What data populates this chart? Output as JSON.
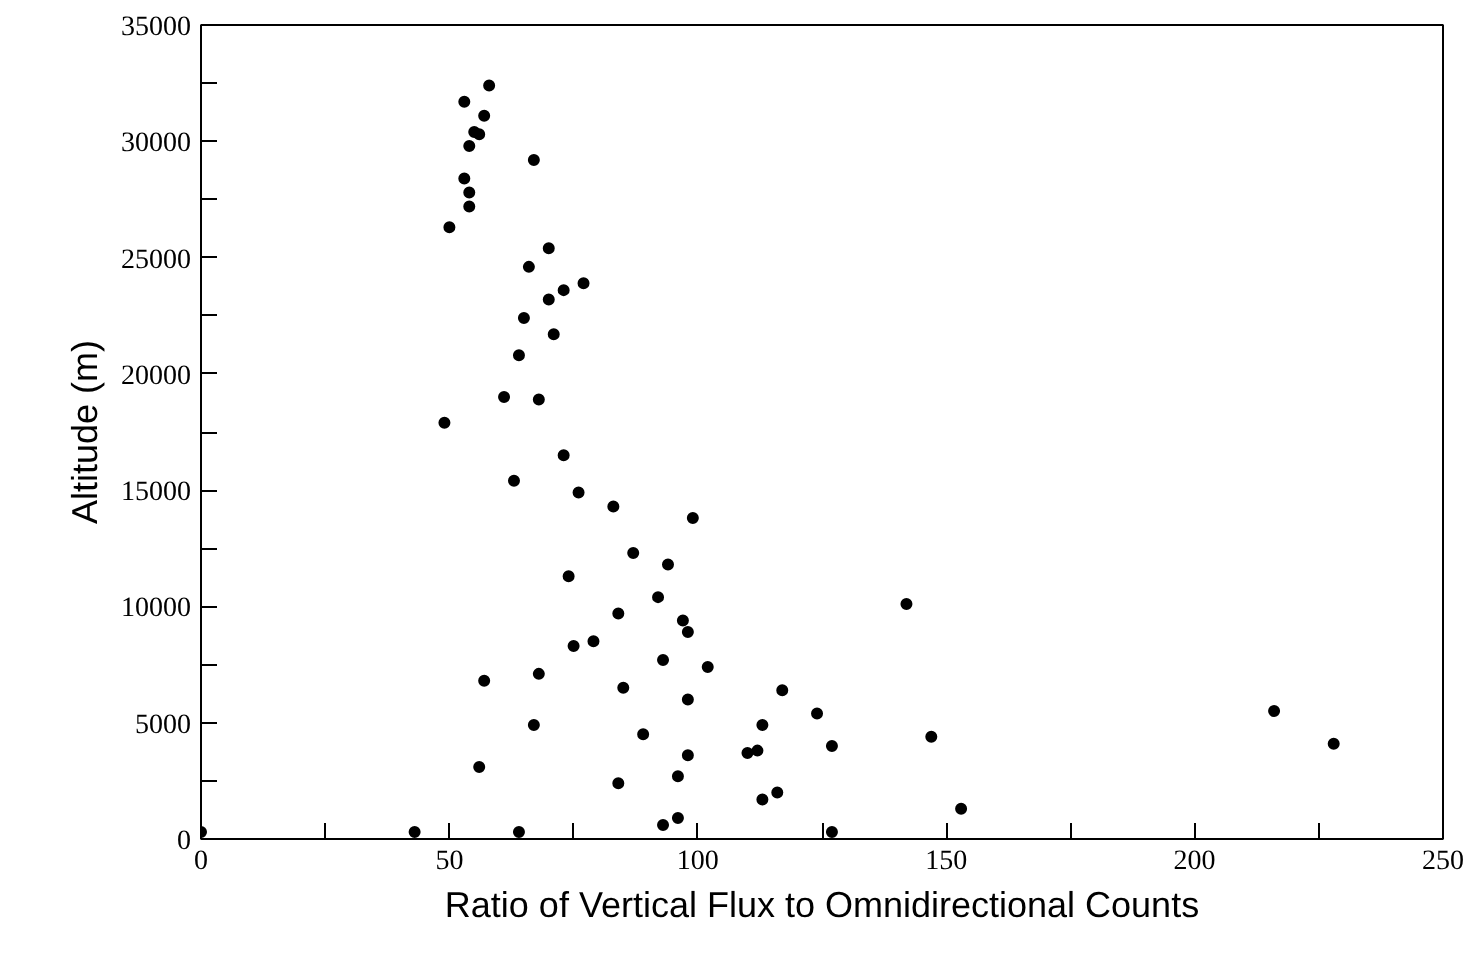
{
  "chart_data": {
    "type": "scatter",
    "xlabel": "Ratio of Vertical Flux to Omnidirectional Counts",
    "ylabel": "Altitude (m)",
    "marker": "circle",
    "grid": false,
    "xlim": [
      0,
      250
    ],
    "ylim": [
      0,
      35000
    ],
    "xticks": [
      0,
      {
        "value": 25,
        "label": null
      },
      50,
      {
        "value": 75,
        "label": null
      },
      100,
      {
        "value": 125,
        "label": null
      },
      150,
      {
        "value": 175,
        "label": null
      },
      200,
      {
        "value": 225,
        "label": null
      },
      250
    ],
    "yticks": [
      0,
      {
        "value": 2500,
        "label": null
      },
      5000,
      {
        "value": 7500,
        "label": null
      },
      10000,
      {
        "value": 12500,
        "label": null
      },
      15000,
      {
        "value": 17500,
        "label": null
      },
      20000,
      {
        "value": 22500,
        "label": null
      },
      25000,
      {
        "value": 27500,
        "label": null
      },
      30000,
      {
        "value": 32500,
        "label": null
      },
      35000
    ],
    "series": [
      {
        "color": "#000000",
        "x": [
          53,
          58,
          57,
          55,
          56,
          54,
          67,
          53,
          54,
          54,
          50,
          70,
          66,
          73,
          77,
          70,
          65,
          71,
          64,
          61,
          68,
          49,
          73,
          63,
          76,
          83,
          99,
          87,
          94,
          74,
          142,
          97,
          84,
          98,
          92,
          79,
          75,
          102,
          93,
          68,
          57,
          85,
          117,
          98,
          124,
          216,
          67,
          113,
          89,
          147,
          127,
          228,
          110,
          98,
          112,
          56,
          96,
          84,
          116,
          113,
          153,
          96,
          93,
          64,
          43,
          0,
          127
        ],
        "values": [
          31700,
          32400,
          31100,
          30400,
          30300,
          29800,
          29200,
          28400,
          27800,
          27200,
          26300,
          25400,
          24600,
          23600,
          23900,
          23200,
          22400,
          21700,
          20800,
          19000,
          18900,
          17900,
          16500,
          15400,
          14900,
          14300,
          13800,
          12300,
          11800,
          11300,
          10100,
          9400,
          9700,
          8900,
          10400,
          8500,
          8300,
          7400,
          7700,
          7100,
          6800,
          6500,
          6400,
          6000,
          5400,
          5500,
          4900,
          4900,
          4500,
          4400,
          4000,
          4100,
          3700,
          3600,
          3800,
          3100,
          2700,
          2400,
          2000,
          1700,
          1300,
          900,
          600,
          300,
          300,
          300,
          300
        ]
      }
    ]
  }
}
